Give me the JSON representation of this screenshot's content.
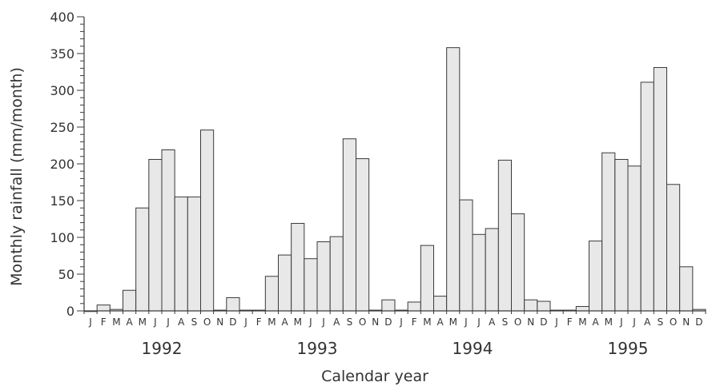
{
  "chart_data": {
    "type": "bar",
    "xlabel": "Calendar year",
    "ylabel": "Monthly rainfall (mm/month)",
    "ylim": [
      0,
      400
    ],
    "y_ticks": [
      "0",
      "50",
      "100",
      "150",
      "200",
      "250",
      "300",
      "350",
      "400"
    ],
    "grid": false,
    "legend": "none",
    "bar_color": "#e8e8e8",
    "years": [
      "1992",
      "1993",
      "1994",
      "1995"
    ],
    "month_labels": [
      "J",
      "F",
      "M",
      "A",
      "M",
      "J",
      "J",
      "A",
      "S",
      "O",
      "N",
      "D"
    ],
    "categories": [
      "Jan 1992",
      "Feb 1992",
      "Mar 1992",
      "Apr 1992",
      "May 1992",
      "Jun 1992",
      "Jul 1992",
      "Aug 1992",
      "Sep 1992",
      "Oct 1992",
      "Nov 1992",
      "Dec 1992",
      "Jan 1993",
      "Feb 1993",
      "Mar 1993",
      "Apr 1993",
      "May 1993",
      "Jun 1993",
      "Jul 1993",
      "Aug 1993",
      "Sep 1993",
      "Oct 1993",
      "Nov 1993",
      "Dec 1993",
      "Jan 1994",
      "Feb 1994",
      "Mar 1994",
      "Apr 1994",
      "May 1994",
      "Jun 1994",
      "Jul 1994",
      "Aug 1994",
      "Sep 1994",
      "Oct 1994",
      "Nov 1994",
      "Dec 1994",
      "Jan 1995",
      "Feb 1995",
      "Mar 1995",
      "Apr 1995",
      "May 1995",
      "Jun 1995",
      "Jul 1995",
      "Aug 1995",
      "Sep 1995",
      "Oct 1995",
      "Nov 1995",
      "Dec 1995"
    ],
    "values": [
      0,
      8,
      2,
      28,
      140,
      206,
      219,
      155,
      155,
      246,
      1,
      18,
      1,
      1,
      47,
      76,
      119,
      71,
      94,
      101,
      234,
      207,
      1,
      15,
      1,
      12,
      89,
      20,
      358,
      151,
      104,
      112,
      205,
      132,
      15,
      13,
      1,
      1,
      6,
      95,
      215,
      206,
      197,
      311,
      331,
      172,
      60,
      2
    ]
  }
}
